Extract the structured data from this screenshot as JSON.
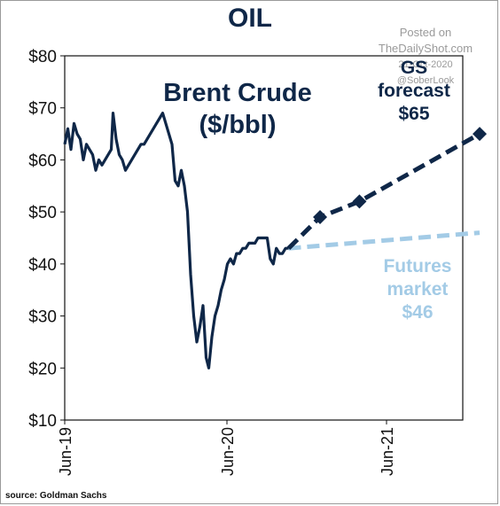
{
  "title": "OIL",
  "watermark": {
    "line1": "Posted on",
    "line2": "TheDailyShot.com",
    "line3": "21-Oct-2020",
    "line4": "@SoberLook"
  },
  "source": "source: Goldman Sachs",
  "colors": {
    "brent": "#0f2748",
    "gs_forecast": "#0f2748",
    "futures": "#a3cbe6"
  },
  "chart_data": {
    "type": "line",
    "ylim": [
      10,
      80
    ],
    "y_ticks": [
      {
        "value": 80,
        "label": "$80"
      },
      {
        "value": 70,
        "label": "$70"
      },
      {
        "value": 60,
        "label": "$60"
      },
      {
        "value": 50,
        "label": "$50"
      },
      {
        "value": 40,
        "label": "$40"
      },
      {
        "value": 30,
        "label": "$30"
      },
      {
        "value": 20,
        "label": "$20"
      },
      {
        "value": 10,
        "label": "$10"
      }
    ],
    "x_ticks": [
      "Jun-19",
      "Jun-20",
      "Jun-21"
    ],
    "annotations": {
      "series_title_line1": "Brent  Crude",
      "series_title_line2": "($/bbl)",
      "gs_line1": "GS",
      "gs_line2": "forecast",
      "gs_line3": "$65",
      "futures_line1": "Futures",
      "futures_line2": "market",
      "futures_line3": "$46"
    },
    "series": [
      {
        "key": "brent",
        "x": [
          "2019-06-01",
          "2019-06-08",
          "2019-06-15",
          "2019-06-22",
          "2019-06-29",
          "2019-07-06",
          "2019-07-13",
          "2019-07-20",
          "2019-07-27",
          "2019-08-03",
          "2019-08-10",
          "2019-08-17",
          "2019-08-24",
          "2019-08-31",
          "2019-09-07",
          "2019-09-14",
          "2019-09-18",
          "2019-09-25",
          "2019-10-02",
          "2019-10-09",
          "2019-10-16",
          "2019-10-23",
          "2019-10-30",
          "2019-11-06",
          "2019-11-13",
          "2019-11-20",
          "2019-11-27",
          "2019-12-04",
          "2019-12-11",
          "2019-12-18",
          "2019-12-25",
          "2020-01-01",
          "2020-01-08",
          "2020-01-15",
          "2020-01-22",
          "2020-01-29",
          "2020-02-05",
          "2020-02-12",
          "2020-02-19",
          "2020-02-26",
          "2020-03-04",
          "2020-03-11",
          "2020-03-18",
          "2020-03-25",
          "2020-04-01",
          "2020-04-08",
          "2020-04-15",
          "2020-04-21",
          "2020-04-28",
          "2020-05-05",
          "2020-05-12",
          "2020-05-19",
          "2020-05-26",
          "2020-06-02",
          "2020-06-09",
          "2020-06-16",
          "2020-06-23",
          "2020-06-30",
          "2020-07-07",
          "2020-07-14",
          "2020-07-21",
          "2020-07-28",
          "2020-08-04",
          "2020-08-11",
          "2020-08-18",
          "2020-08-25",
          "2020-09-01",
          "2020-09-08",
          "2020-09-15",
          "2020-09-22",
          "2020-09-29",
          "2020-10-06",
          "2020-10-13",
          "2020-10-20"
        ],
        "values": [
          63,
          66,
          62,
          67,
          65,
          64,
          60,
          63,
          62,
          61,
          58,
          60,
          59,
          60,
          61,
          62,
          69,
          64,
          61,
          60,
          58,
          59,
          60,
          61,
          62,
          63,
          63,
          64,
          65,
          66,
          67,
          68,
          69,
          67,
          65,
          63,
          56,
          55,
          58,
          55,
          50,
          38,
          30,
          25,
          28,
          32,
          22,
          20,
          26,
          30,
          32,
          35,
          37,
          40,
          41,
          40,
          42,
          42,
          43,
          43,
          44,
          44,
          44,
          45,
          45,
          45,
          45,
          41,
          40,
          43,
          42,
          42,
          43,
          43
        ]
      },
      {
        "key": "gs_forecast",
        "x": [
          "2020-10-20",
          "2020-12-31",
          "2021-03-31",
          "2021-12-31"
        ],
        "values": [
          43,
          49,
          52,
          65
        ]
      },
      {
        "key": "futures",
        "x": [
          "2020-10-20",
          "2021-12-31"
        ],
        "values": [
          43,
          46
        ]
      }
    ]
  }
}
